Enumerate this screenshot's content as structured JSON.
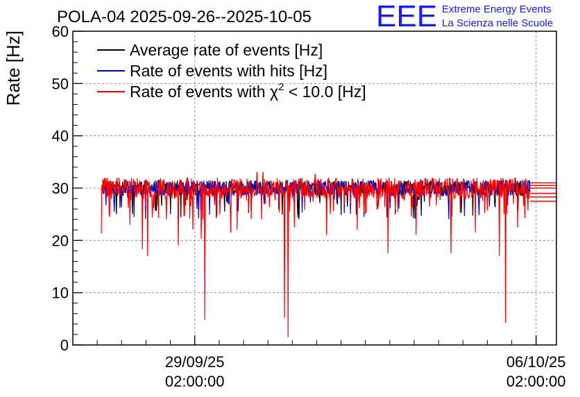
{
  "logo": {
    "letters": "EEE",
    "line1": "Extreme Energy Events",
    "line2": "La Scienza nelle Scuole",
    "color": "#1a1aff"
  },
  "chart_data": {
    "type": "line",
    "title": "POLA-04 2025-09-26--2025-10-05",
    "ylabel": "Rate [Hz]",
    "xlabel": "",
    "ylim": [
      0,
      60
    ],
    "yticks": [
      0,
      10,
      20,
      30,
      40,
      50,
      60
    ],
    "xlim": [
      "2025-09-26T14:00:00",
      "2025-10-06T12:00:00"
    ],
    "xticks": [
      {
        "time": "2025-09-29T02:00:00",
        "date": "29/09/25",
        "clock": "02:00:00"
      },
      {
        "time": "2025-10-06T02:00:00",
        "date": "06/10/25",
        "clock": "02:00:00"
      }
    ],
    "grid": true,
    "legend_position": "top-left",
    "legend": [
      {
        "label": "Average rate of events [Hz]",
        "color": "#000000"
      },
      {
        "label": "Rate of events with hits [Hz]",
        "color": "#0000cc"
      },
      {
        "label_prefix": "Rate of events with ",
        "label_symbol": "χ",
        "label_sup": "2",
        "label_suffix": " < 10.0 [Hz]",
        "color": "#ff0000"
      }
    ],
    "series": [
      {
        "name": "Average rate of events [Hz]",
        "color": "#000000",
        "baseline": 30.0,
        "band": [
          28.5,
          31.5
        ]
      },
      {
        "name": "Rate of events with hits [Hz]",
        "color": "#0000cc",
        "baseline": 30.0,
        "band": [
          28.5,
          31.5
        ]
      },
      {
        "name": "Rate of events with χ2 < 10.0 [Hz]",
        "color": "#ff0000",
        "start": "2025-09-27T04:00:00",
        "end": "2025-10-05T23:00:00",
        "baseline": 30.0,
        "band": [
          28.0,
          32.0
        ],
        "max": 33.5,
        "dips": [
          {
            "time": "2025-09-27T04:00:00",
            "value": 21.3
          },
          {
            "time": "2025-09-27T08:00:00",
            "value": 24.5
          },
          {
            "time": "2025-09-27T18:00:00",
            "value": 23.0
          },
          {
            "time": "2025-09-28T00:00:00",
            "value": 18.3
          },
          {
            "time": "2025-09-28T03:00:00",
            "value": 17.0
          },
          {
            "time": "2025-09-28T12:00:00",
            "value": 24.0
          },
          {
            "time": "2025-09-28T18:00:00",
            "value": 19.0
          },
          {
            "time": "2025-09-29T01:00:00",
            "value": 22.0
          },
          {
            "time": "2025-09-29T05:00:00",
            "value": 20.3
          },
          {
            "time": "2025-09-29T07:00:00",
            "value": 4.8
          },
          {
            "time": "2025-09-29T20:00:00",
            "value": 21.5
          },
          {
            "time": "2025-09-29T23:00:00",
            "value": 22.0
          },
          {
            "time": "2025-09-30T11:00:00",
            "value": 24.0
          },
          {
            "time": "2025-09-30T22:00:00",
            "value": 5.2
          },
          {
            "time": "2025-09-31T00:00:00",
            "value": 1.5
          },
          {
            "time": "2025-10-01T03:00:00",
            "value": 22.5
          },
          {
            "time": "2025-10-01T19:00:00",
            "value": 21.0
          },
          {
            "time": "2025-10-02T10:00:00",
            "value": 22.0
          },
          {
            "time": "2025-10-03T01:00:00",
            "value": 17.5
          },
          {
            "time": "2025-10-03T15:00:00",
            "value": 21.0
          },
          {
            "time": "2025-10-04T08:00:00",
            "value": 17.5
          },
          {
            "time": "2025-10-04T20:00:00",
            "value": 21.5
          },
          {
            "time": "2025-10-05T08:00:00",
            "value": 17.0
          },
          {
            "time": "2025-10-05T11:00:00",
            "value": 4.2
          },
          {
            "time": "2025-10-05T17:00:00",
            "value": 22.5
          }
        ],
        "tail_levels": [
          31.0,
          30.5,
          30.0,
          29.0,
          28.3,
          27.5
        ]
      }
    ]
  }
}
